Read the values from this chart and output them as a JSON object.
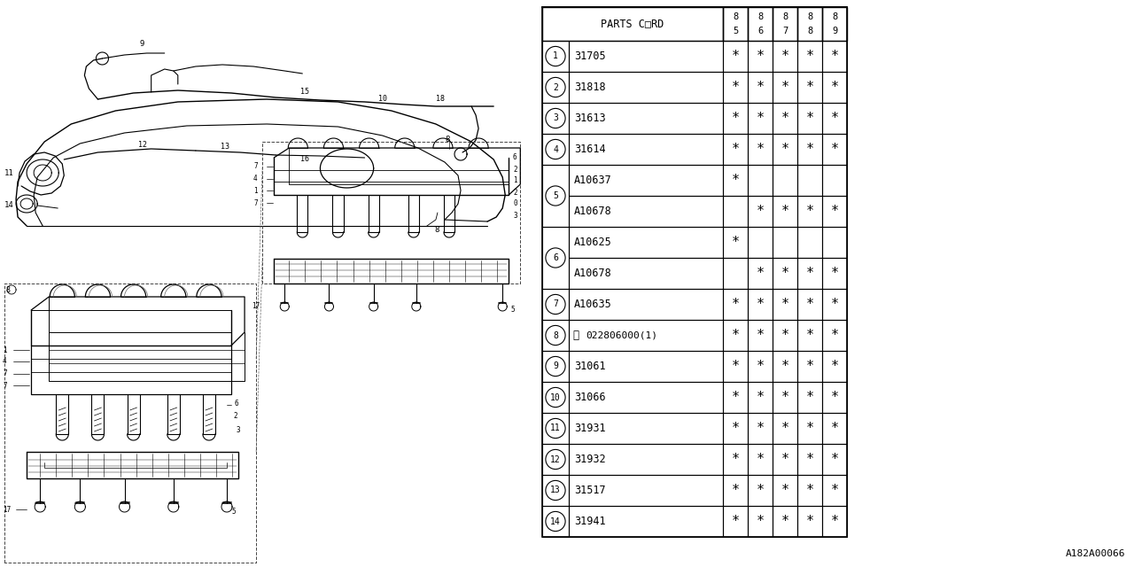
{
  "watermark": "A182A00066",
  "bg_color": "#ffffff",
  "line_color": "#000000",
  "table": {
    "header_label": "PARTS C□RD",
    "year_cols": [
      [
        "8",
        "5"
      ],
      [
        "8",
        "6"
      ],
      [
        "8",
        "7"
      ],
      [
        "8",
        "8"
      ],
      [
        "8",
        "9"
      ]
    ],
    "rows": [
      {
        "num": "1",
        "span": 1,
        "parts": [
          "31705"
        ],
        "marks": [
          [
            1,
            1,
            1,
            1,
            1
          ]
        ]
      },
      {
        "num": "2",
        "span": 1,
        "parts": [
          "31818"
        ],
        "marks": [
          [
            1,
            1,
            1,
            1,
            1
          ]
        ]
      },
      {
        "num": "3",
        "span": 1,
        "parts": [
          "31613"
        ],
        "marks": [
          [
            1,
            1,
            1,
            1,
            1
          ]
        ]
      },
      {
        "num": "4",
        "span": 1,
        "parts": [
          "31614"
        ],
        "marks": [
          [
            1,
            1,
            1,
            1,
            1
          ]
        ]
      },
      {
        "num": "5",
        "span": 2,
        "parts": [
          "A10637",
          "A10678"
        ],
        "marks": [
          [
            1,
            0,
            0,
            0,
            0
          ],
          [
            0,
            1,
            1,
            1,
            1
          ]
        ]
      },
      {
        "num": "6",
        "span": 2,
        "parts": [
          "A10625",
          "A10678"
        ],
        "marks": [
          [
            1,
            0,
            0,
            0,
            0
          ],
          [
            0,
            1,
            1,
            1,
            1
          ]
        ]
      },
      {
        "num": "7",
        "span": 1,
        "parts": [
          "A10635"
        ],
        "marks": [
          [
            1,
            1,
            1,
            1,
            1
          ]
        ]
      },
      {
        "num": "8",
        "span": 1,
        "parts": [
          "ⓝ022806000(1)"
        ],
        "marks": [
          [
            1,
            1,
            1,
            1,
            1
          ]
        ]
      },
      {
        "num": "9",
        "span": 1,
        "parts": [
          "31061"
        ],
        "marks": [
          [
            1,
            1,
            1,
            1,
            1
          ]
        ]
      },
      {
        "num": "10",
        "span": 1,
        "parts": [
          "31066"
        ],
        "marks": [
          [
            1,
            1,
            1,
            1,
            1
          ]
        ]
      },
      {
        "num": "11",
        "span": 1,
        "parts": [
          "31931"
        ],
        "marks": [
          [
            1,
            1,
            1,
            1,
            1
          ]
        ]
      },
      {
        "num": "12",
        "span": 1,
        "parts": [
          "31932"
        ],
        "marks": [
          [
            1,
            1,
            1,
            1,
            1
          ]
        ]
      },
      {
        "num": "13",
        "span": 1,
        "parts": [
          "31517"
        ],
        "marks": [
          [
            1,
            1,
            1,
            1,
            1
          ]
        ]
      },
      {
        "num": "14",
        "span": 1,
        "parts": [
          "31941"
        ],
        "marks": [
          [
            1,
            1,
            1,
            1,
            1
          ]
        ]
      }
    ]
  }
}
